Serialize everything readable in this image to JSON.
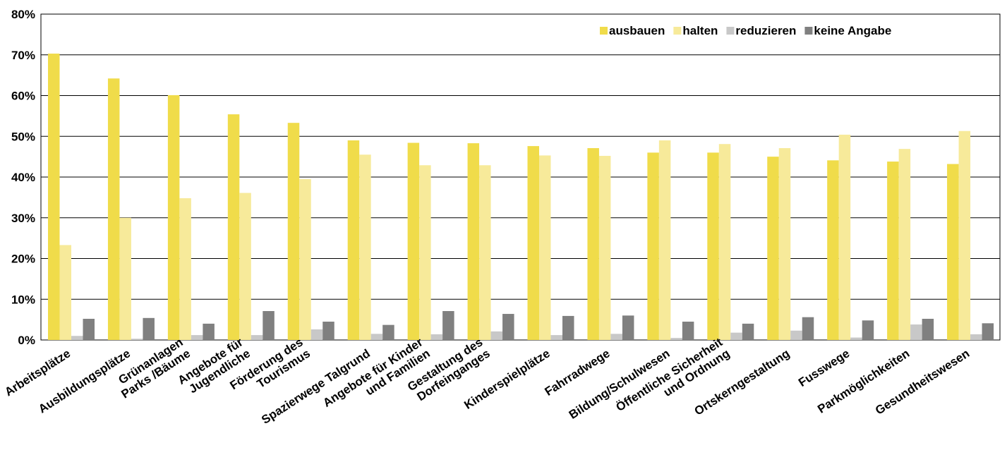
{
  "chart_data": {
    "type": "bar",
    "categories": [
      "Arbeitsplätze",
      "Ausbildungsplätze",
      "Grünanlagen\nParks /Bäume",
      "Angebote für\nJugendliche",
      "Förderung des\nTourismus",
      "Spazierwege Talgrund",
      "Angebote für Kinder\nund Familien",
      "Gestaltung des\nDorfeinganges",
      "Kinderspielplätze",
      "Fahrradwege",
      "Bildung/Schulwesen",
      "Öffentliche Sicherheit\nund Ordnung",
      "Ortskerngestaltung",
      "Fusswege",
      "Parkmöglichkeiten",
      "Gesundheitswesen"
    ],
    "series": [
      {
        "name": "ausbauen",
        "color": "#f0dc4a",
        "values": [
          70.3,
          64.2,
          60.1,
          55.4,
          53.3,
          49.0,
          48.4,
          48.3,
          47.6,
          47.1,
          46.0,
          46.0,
          45.0,
          44.1,
          43.8,
          43.2
        ]
      },
      {
        "name": "halten",
        "color": "#f7ea9a",
        "values": [
          23.3,
          30.0,
          34.8,
          36.1,
          39.5,
          45.5,
          42.9,
          42.9,
          45.3,
          45.2,
          49.0,
          48.1,
          47.1,
          50.4,
          46.9,
          51.3
        ]
      },
      {
        "name": "reduzieren",
        "color": "#c8c8c8",
        "values": [
          1.0,
          0.3,
          1.2,
          1.2,
          2.6,
          1.5,
          1.4,
          2.1,
          1.2,
          1.5,
          0.5,
          1.8,
          2.3,
          0.6,
          3.8,
          1.4
        ]
      },
      {
        "name": "keine Angabe",
        "color": "#808080",
        "values": [
          5.2,
          5.4,
          4.0,
          7.1,
          4.5,
          3.7,
          7.1,
          6.4,
          5.9,
          6.0,
          4.5,
          4.0,
          5.6,
          4.8,
          5.2,
          4.1
        ]
      }
    ],
    "ylim": [
      0,
      80
    ],
    "yticks": [
      {
        "value": 0,
        "label": "0%"
      },
      {
        "value": 10,
        "label": "10%"
      },
      {
        "value": 20,
        "label": "20%"
      },
      {
        "value": 30,
        "label": "30%"
      },
      {
        "value": 40,
        "label": "40%"
      },
      {
        "value": 50,
        "label": "50%"
      },
      {
        "value": 60,
        "label": "60%"
      },
      {
        "value": 70,
        "label": "70%"
      },
      {
        "value": 80,
        "label": "80%"
      }
    ],
    "grid": true,
    "legend": "top-right"
  }
}
